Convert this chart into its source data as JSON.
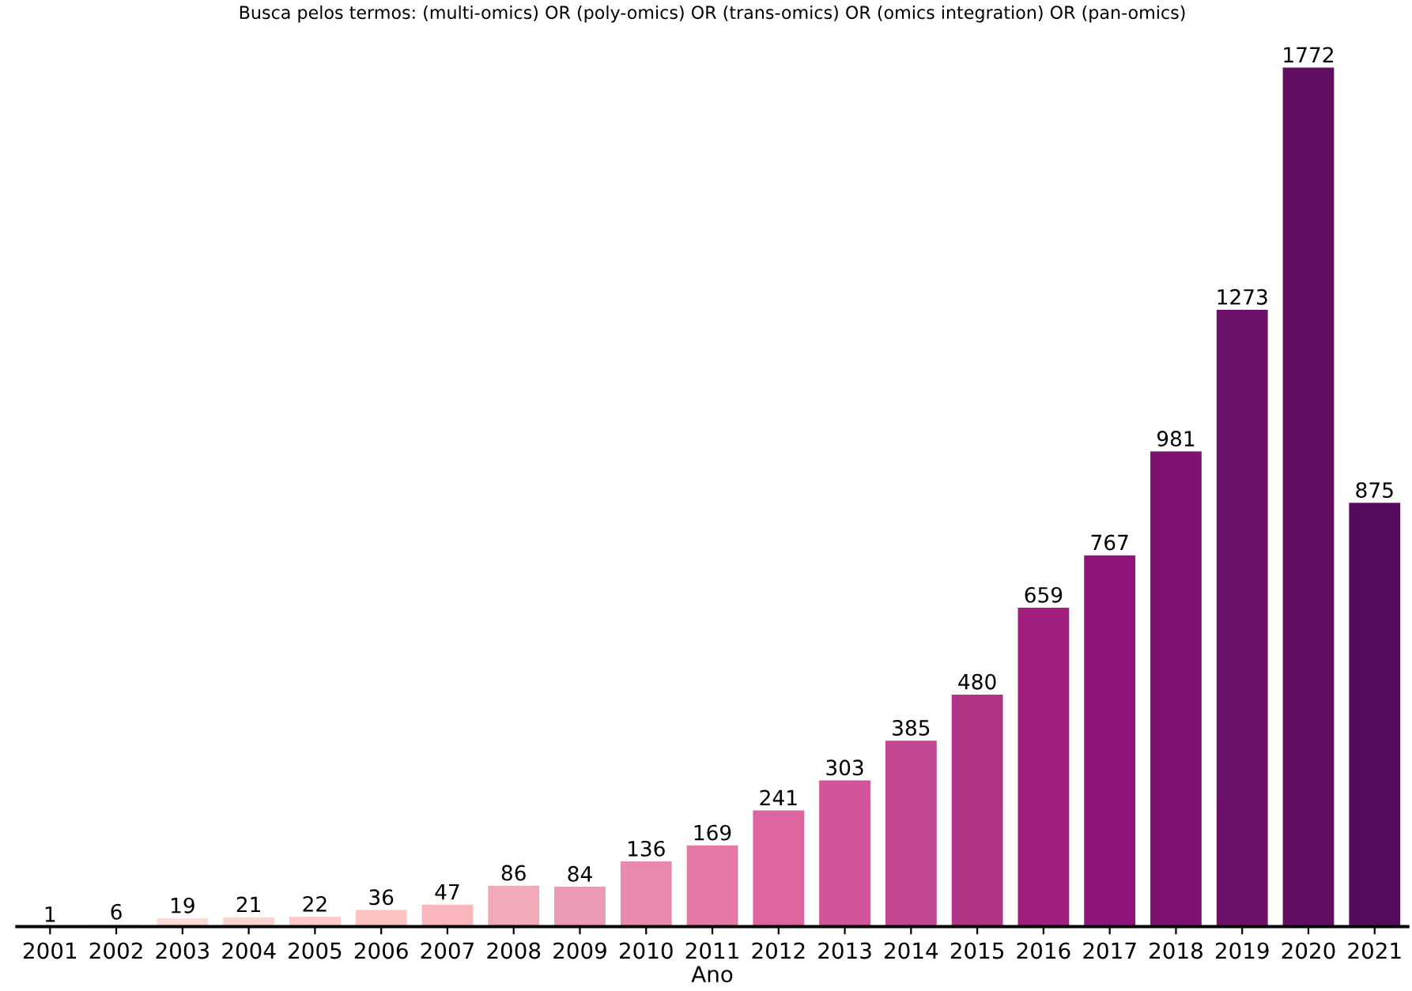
{
  "chart_data": {
    "type": "bar",
    "title": "Busca pelos termos: (multi-omics) OR (poly-omics) OR (trans-omics) OR (omics integration) OR (pan-omics)",
    "xlabel": "Ano",
    "categories": [
      "2001",
      "2002",
      "2003",
      "2004",
      "2005",
      "2006",
      "2007",
      "2008",
      "2009",
      "2010",
      "2011",
      "2012",
      "2013",
      "2014",
      "2015",
      "2016",
      "2017",
      "2018",
      "2019",
      "2020",
      "2021"
    ],
    "values": [
      1,
      6,
      19,
      21,
      22,
      36,
      47,
      86,
      84,
      136,
      169,
      241,
      303,
      385,
      480,
      659,
      767,
      981,
      1273,
      1772,
      875
    ],
    "colors": [
      "#fdeeea",
      "#fde6e2",
      "#fcdcd8",
      "#fcd5d1",
      "#fccdc8",
      "#fbc4c0",
      "#f9b7bd",
      "#f0aab8",
      "#ec9ab3",
      "#e889ad",
      "#e578a5",
      "#dc649f",
      "#d2559a",
      "#c24690",
      "#b03486",
      "#a01f7d",
      "#8e1479",
      "#7e1270",
      "#6e1269",
      "#620f61",
      "#540d5c"
    ],
    "data_labels": true,
    "grid": false,
    "legend": false
  }
}
